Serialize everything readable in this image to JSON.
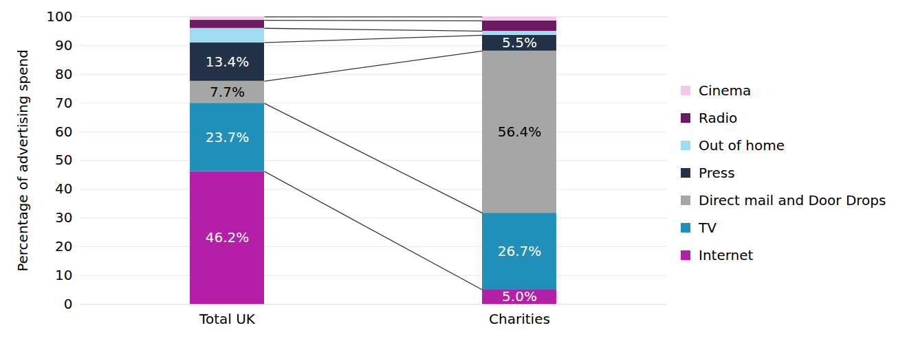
{
  "chart_data": {
    "type": "bar",
    "stacked": true,
    "data_labels": true,
    "grid": true,
    "legend": "right",
    "ylabel": "Percentage of advertising spend",
    "categories": [
      "Total UK",
      "Charities"
    ],
    "ylim": [
      0,
      100
    ],
    "yticks": [
      0,
      10,
      20,
      30,
      40,
      50,
      60,
      70,
      80,
      90,
      100
    ],
    "series": [
      {
        "name": "Internet",
        "color": "#b31fa6",
        "values": [
          46.2,
          5.0
        ],
        "value_labels": [
          "46.2%",
          "5.0%"
        ]
      },
      {
        "name": "TV",
        "color": "#2190b8",
        "values": [
          23.7,
          26.7
        ],
        "value_labels": [
          "23.7%",
          "26.7%"
        ]
      },
      {
        "name": "Direct mail and Door Drops",
        "color": "#a6a6a6",
        "values": [
          7.7,
          56.4
        ],
        "value_labels": [
          "7.7%",
          "56.4%"
        ]
      },
      {
        "name": "Press",
        "color": "#243248",
        "values": [
          13.4,
          5.5
        ],
        "value_labels": [
          "13.4%",
          "5.5%"
        ]
      },
      {
        "name": "Out of home",
        "color": "#a0dcef",
        "values": [
          5.0,
          1.4
        ],
        "value_labels": [
          null,
          null
        ]
      },
      {
        "name": "Radio",
        "color": "#6a1a60",
        "values": [
          2.8,
          3.6
        ],
        "value_labels": [
          null,
          null
        ]
      },
      {
        "name": "Cinema",
        "color": "#f4c7ea",
        "values": [
          1.2,
          1.4
        ],
        "value_labels": [
          null,
          null
        ]
      }
    ]
  }
}
